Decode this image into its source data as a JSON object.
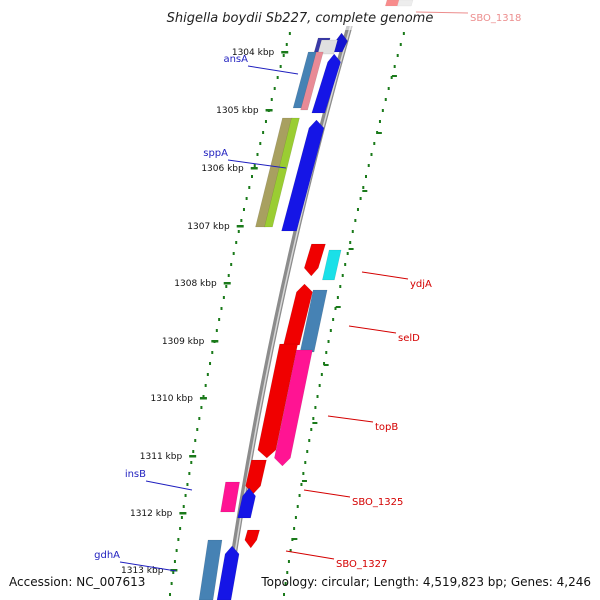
{
  "title": "Shigella boydii Sb227, complete genome",
  "accession": "Accession: NC_007613",
  "topology": "Topology: circular; Length: 4,519,823 bp; Genes: 4,246",
  "colors": {
    "backbone": "#8c8c8c",
    "tick": "#1a7a1a",
    "label_left": "#1f1fbf",
    "label_right": "#d40000"
  },
  "ticks": [
    "1304 kbp",
    "1305 kbp",
    "1306 kbp",
    "1307 kbp",
    "1308 kbp",
    "1309 kbp",
    "1310 kbp",
    "1311 kbp",
    "1312 kbp",
    "1313 kbp"
  ],
  "gene_labels": {
    "left": [
      "ansA",
      "sppA",
      "insB",
      "gdhA"
    ],
    "right": [
      "SBO_1318",
      "ydjA",
      "selD",
      "topB",
      "SBO_1325",
      "SBO_1327"
    ]
  }
}
